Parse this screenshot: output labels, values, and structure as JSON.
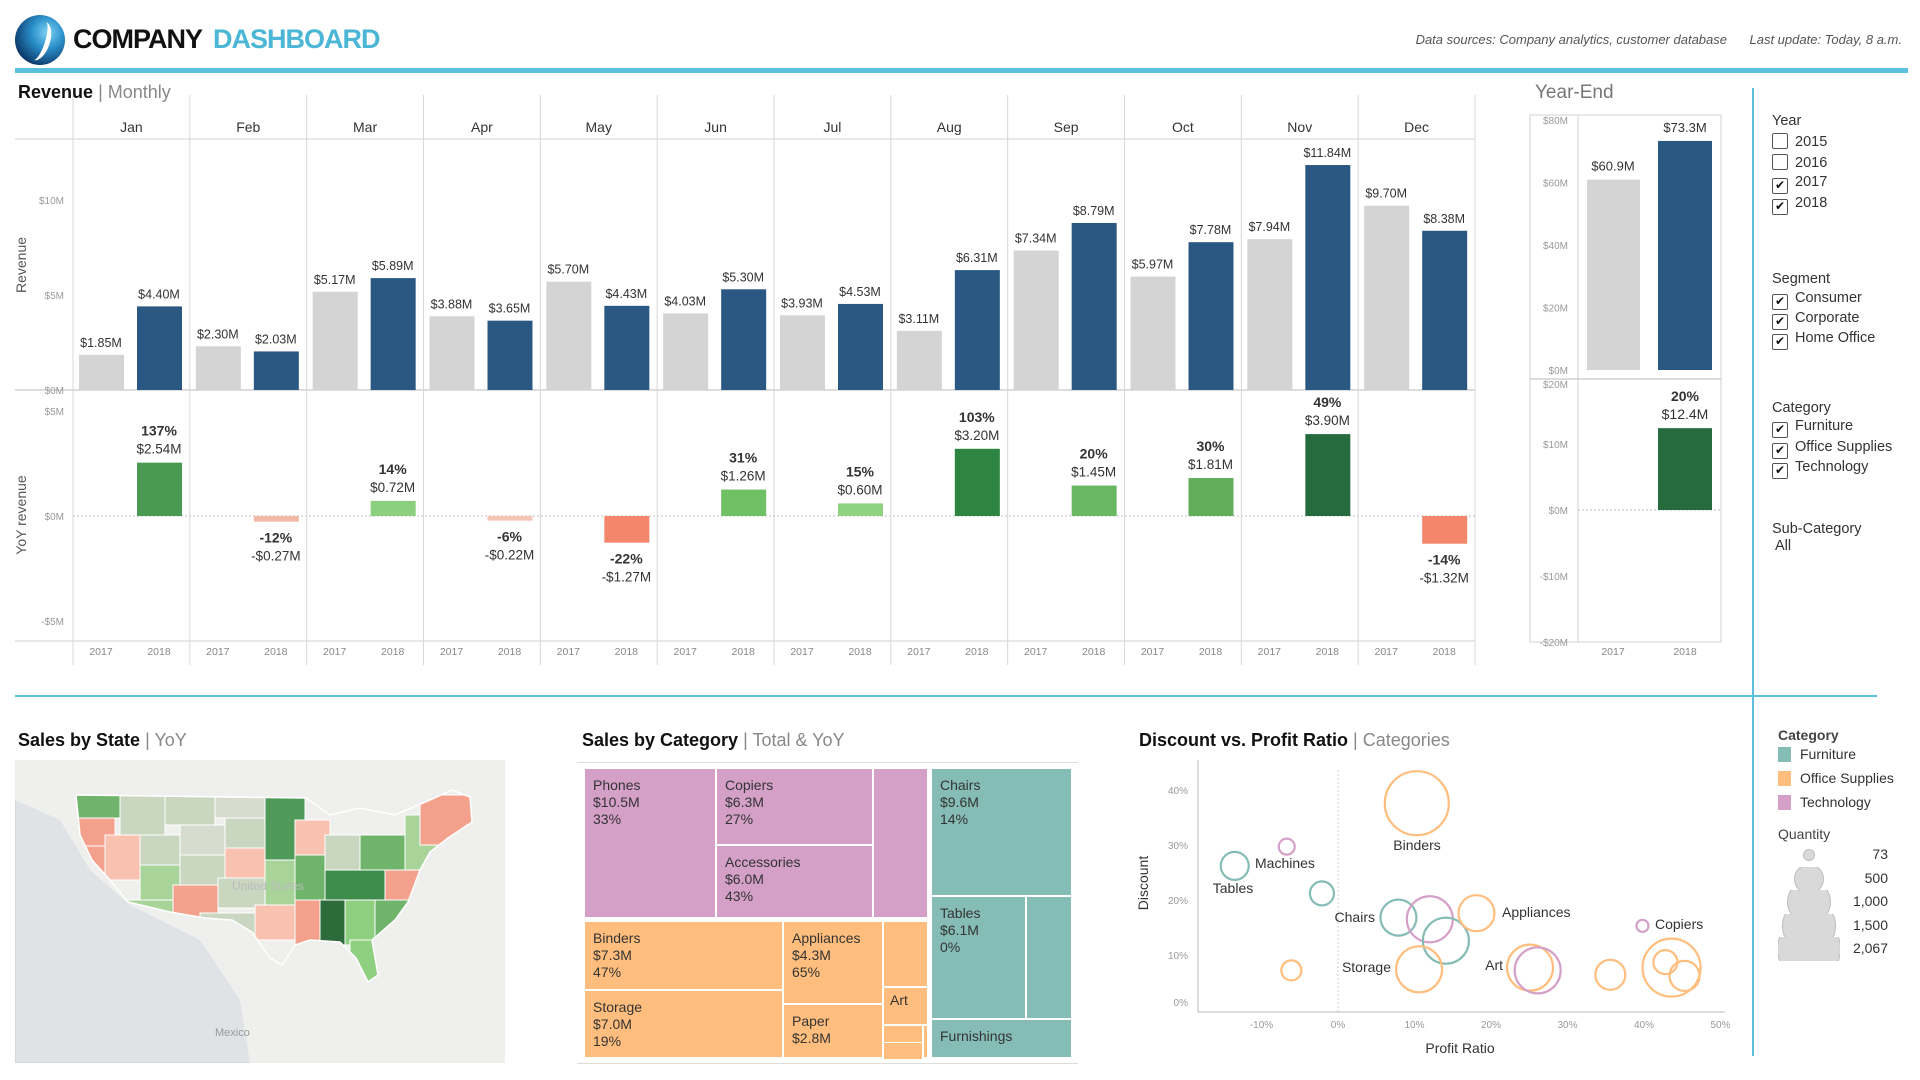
{
  "header": {
    "company": "COMPANY",
    "dashboard": "DASHBOARD",
    "data_sources": "Data sources: Company analytics, customer database",
    "last_update": "Last update: Today, 8 a.m.",
    "accent": "#5bc0de"
  },
  "revenue": {
    "title": "Revenue",
    "subtitle": "Monthly",
    "axis_revenue": "Revenue",
    "axis_yoy": "YoY revenue",
    "ticks_revenue": [
      "$10M",
      "$5M",
      "$0M"
    ],
    "ticks_yoy": [
      "$5M",
      "$0M",
      "-$5M"
    ],
    "years": [
      "2017",
      "2018"
    ],
    "color_2017": "#d4d4d4",
    "color_2018": "#2b5883",
    "months": [
      {
        "month": "Jan",
        "rev_2017": 1.85,
        "rev_2018": 4.4,
        "label_2017": "$1.85M",
        "label_2018": "$4.40M",
        "yoy": 2.54,
        "yoy_pct": "137%",
        "yoy_label": "$2.54M",
        "yoy_color": "#4a9a54"
      },
      {
        "month": "Feb",
        "rev_2017": 2.3,
        "rev_2018": 2.03,
        "label_2017": "$2.30M",
        "label_2018": "$2.03M",
        "yoy": -0.27,
        "yoy_pct": "-12%",
        "yoy_label": "-$0.27M",
        "yoy_color": "#f2b8a8"
      },
      {
        "month": "Mar",
        "rev_2017": 5.17,
        "rev_2018": 5.89,
        "label_2017": "$5.17M",
        "label_2018": "$5.89M",
        "yoy": 0.72,
        "yoy_pct": "14%",
        "yoy_label": "$0.72M",
        "yoy_color": "#8ccf7e"
      },
      {
        "month": "Apr",
        "rev_2017": 3.88,
        "rev_2018": 3.65,
        "label_2017": "$3.88M",
        "label_2018": "$3.65M",
        "yoy": -0.22,
        "yoy_pct": "-6%",
        "yoy_label": "-$0.22M",
        "yoy_color": "#f4c4b6"
      },
      {
        "month": "May",
        "rev_2017": 5.7,
        "rev_2018": 4.43,
        "label_2017": "$5.70M",
        "label_2018": "$4.43M",
        "yoy": -1.27,
        "yoy_pct": "-22%",
        "yoy_label": "-$1.27M",
        "yoy_color": "#f4866b"
      },
      {
        "month": "Jun",
        "rev_2017": 4.03,
        "rev_2018": 5.3,
        "label_2017": "$4.03M",
        "label_2018": "$5.30M",
        "yoy": 1.26,
        "yoy_pct": "31%",
        "yoy_label": "$1.26M",
        "yoy_color": "#70c066"
      },
      {
        "month": "Jul",
        "rev_2017": 3.93,
        "rev_2018": 4.53,
        "label_2017": "$3.93M",
        "label_2018": "$4.53M",
        "yoy": 0.6,
        "yoy_pct": "15%",
        "yoy_label": "$0.60M",
        "yoy_color": "#8fd280"
      },
      {
        "month": "Aug",
        "rev_2017": 3.11,
        "rev_2018": 6.31,
        "label_2017": "$3.11M",
        "label_2018": "$6.31M",
        "yoy": 3.2,
        "yoy_pct": "103%",
        "yoy_label": "$3.20M",
        "yoy_color": "#2e8541"
      },
      {
        "month": "Sep",
        "rev_2017": 7.34,
        "rev_2018": 8.79,
        "label_2017": "$7.34M",
        "label_2018": "$8.79M",
        "yoy": 1.45,
        "yoy_pct": "20%",
        "yoy_label": "$1.45M",
        "yoy_color": "#6bb863"
      },
      {
        "month": "Oct",
        "rev_2017": 5.97,
        "rev_2018": 7.78,
        "label_2017": "$5.97M",
        "label_2018": "$7.78M",
        "yoy": 1.81,
        "yoy_pct": "30%",
        "yoy_label": "$1.81M",
        "yoy_color": "#61ad5a"
      },
      {
        "month": "Nov",
        "rev_2017": 7.94,
        "rev_2018": 11.84,
        "label_2017": "$7.94M",
        "label_2018": "$11.84M",
        "yoy": 3.9,
        "yoy_pct": "49%",
        "yoy_label": "$3.90M",
        "yoy_color": "#256b3d"
      },
      {
        "month": "Dec",
        "rev_2017": 9.7,
        "rev_2018": 8.38,
        "label_2017": "$9.70M",
        "label_2018": "$8.38M",
        "yoy": -1.32,
        "yoy_pct": "-14%",
        "yoy_label": "-$1.32M",
        "yoy_color": "#f4866b"
      }
    ]
  },
  "year_end": {
    "title": "Year-End",
    "ticks_top": [
      "$80M",
      "$60M",
      "$40M",
      "$20M",
      "$0M"
    ],
    "ticks_bottom": [
      "$20M",
      "$10M",
      "$0M",
      "-$10M",
      "-$20M"
    ],
    "rev_2017": 60.9,
    "rev_2018": 73.3,
    "label_2017": "$60.9M",
    "label_2018": "$73.3M",
    "yoy": 12.4,
    "yoy_pct": "20%",
    "yoy_label": "$12.4M",
    "yoy_color": "#256b3d"
  },
  "filters": {
    "year": {
      "title": "Year",
      "items": [
        {
          "label": "2015",
          "checked": false
        },
        {
          "label": "2016",
          "checked": false
        },
        {
          "label": "2017",
          "checked": true
        },
        {
          "label": "2018",
          "checked": true
        }
      ]
    },
    "segment": {
      "title": "Segment",
      "items": [
        {
          "label": "Consumer",
          "checked": true
        },
        {
          "label": "Corporate",
          "checked": true
        },
        {
          "label": "Home Office",
          "checked": true
        }
      ]
    },
    "category": {
      "title": "Category",
      "items": [
        {
          "label": "Furniture",
          "checked": true
        },
        {
          "label": "Office Supplies",
          "checked": true
        },
        {
          "label": "Technology",
          "checked": true
        }
      ]
    },
    "subcategory": {
      "title": "Sub-Category",
      "value": "All"
    }
  },
  "map": {
    "title": "Sales by State",
    "subtitle": "YoY",
    "label_us": "United States",
    "label_mexico": "Mexico"
  },
  "treemap": {
    "title": "Sales by Category",
    "subtitle": "Total & YoY",
    "tiles": [
      {
        "name": "Phones",
        "value": "$10.5M",
        "yoy": "33%",
        "category": "Technology"
      },
      {
        "name": "Copiers",
        "value": "$6.3M",
        "yoy": "27%",
        "category": "Technology"
      },
      {
        "name": "Accessories",
        "value": "$6.0M",
        "yoy": "43%",
        "category": "Technology"
      },
      {
        "name": "Binders",
        "value": "$7.3M",
        "yoy": "47%",
        "category": "Office Supplies"
      },
      {
        "name": "Storage",
        "value": "$7.0M",
        "yoy": "19%",
        "category": "Office Supplies"
      },
      {
        "name": "Appliances",
        "value": "$4.3M",
        "yoy": "65%",
        "category": "Office Supplies"
      },
      {
        "name": "Paper",
        "value": "$2.8M",
        "category": "Office Supplies"
      },
      {
        "name": "Art",
        "category": "Office Supplies"
      },
      {
        "name": "Chairs",
        "value": "$9.6M",
        "yoy": "14%",
        "category": "Furniture"
      },
      {
        "name": "Tables",
        "value": "$6.1M",
        "yoy": "0%",
        "category": "Furniture"
      },
      {
        "name": "Furnishings",
        "category": "Furniture"
      }
    ]
  },
  "scatter": {
    "chart_data": {
      "type": "scatter",
      "title": "Discount vs. Profit Ratio",
      "subtitle": "Categories",
      "xlabel": "Profit Ratio",
      "ylabel": "Discount",
      "xlim": [
        -17,
        50
      ],
      "ylim": [
        0,
        45
      ],
      "x_ticks": [
        "-10%",
        "0%",
        "10%",
        "20%",
        "30%",
        "40%",
        "50%"
      ],
      "y_ticks": [
        "0%",
        "10%",
        "20%",
        "30%",
        "40%"
      ],
      "points": [
        {
          "name": "Binders",
          "category": "Office Supplies",
          "profit_ratio": 10.3,
          "discount": 37.6,
          "quantity": 2067
        },
        {
          "name": "Machines",
          "category": "Technology",
          "profit_ratio": -6.7,
          "discount": 29.7,
          "quantity": 129
        },
        {
          "name": "Tables",
          "category": "Furniture",
          "profit_ratio": -13.5,
          "discount": 26.2,
          "quantity": 395
        },
        {
          "name": "",
          "category": "Furniture",
          "profit_ratio": -2.1,
          "discount": 21.2,
          "quantity": 290
        },
        {
          "name": "Chairs",
          "category": "Furniture",
          "profit_ratio": 7.9,
          "discount": 16.8,
          "quantity": 654
        },
        {
          "name": "",
          "category": "Technology",
          "profit_ratio": 12.0,
          "discount": 16.5,
          "quantity": 1067
        },
        {
          "name": "",
          "category": "Furniture",
          "profit_ratio": 14.1,
          "discount": 12.6,
          "quantity": 1067
        },
        {
          "name": "Appliances",
          "category": "Office Supplies",
          "profit_ratio": 18.1,
          "discount": 17.6,
          "quantity": 654
        },
        {
          "name": "",
          "category": "Office Supplies",
          "profit_ratio": -6.1,
          "discount": 7.2,
          "quantity": 202
        },
        {
          "name": "Storage",
          "category": "Office Supplies",
          "profit_ratio": 10.6,
          "discount": 7.4,
          "quantity": 1067
        },
        {
          "name": "Art",
          "category": "Office Supplies",
          "profit_ratio": 25.1,
          "discount": 7.7,
          "quantity": 1067
        },
        {
          "name": "",
          "category": "Technology",
          "profit_ratio": 26.1,
          "discount": 7.2,
          "quantity": 1067
        },
        {
          "name": "",
          "category": "Office Supplies",
          "profit_ratio": 35.6,
          "discount": 6.4,
          "quantity": 454
        },
        {
          "name": "Copiers",
          "category": "Technology",
          "profit_ratio": 39.8,
          "discount": 15.3,
          "quantity": 73
        },
        {
          "name": "",
          "category": "Office Supplies",
          "profit_ratio": 43.6,
          "discount": 7.7,
          "quantity": 1697
        },
        {
          "name": "",
          "category": "Office Supplies",
          "profit_ratio": 42.8,
          "discount": 8.7,
          "quantity": 290
        },
        {
          "name": "",
          "category": "Office Supplies",
          "profit_ratio": 45.3,
          "discount": 6.2,
          "quantity": 454
        }
      ],
      "colors": {
        "Furniture": "#86bcb6",
        "Office Supplies": "#ffbe7d",
        "Technology": "#d4a0c8"
      }
    }
  },
  "legend": {
    "category_title": "Category",
    "categories": [
      "Furniture",
      "Office Supplies",
      "Technology"
    ],
    "quantity_title": "Quantity",
    "quantity_values": [
      "73",
      "500",
      "1,000",
      "1,500",
      "2,067"
    ]
  }
}
